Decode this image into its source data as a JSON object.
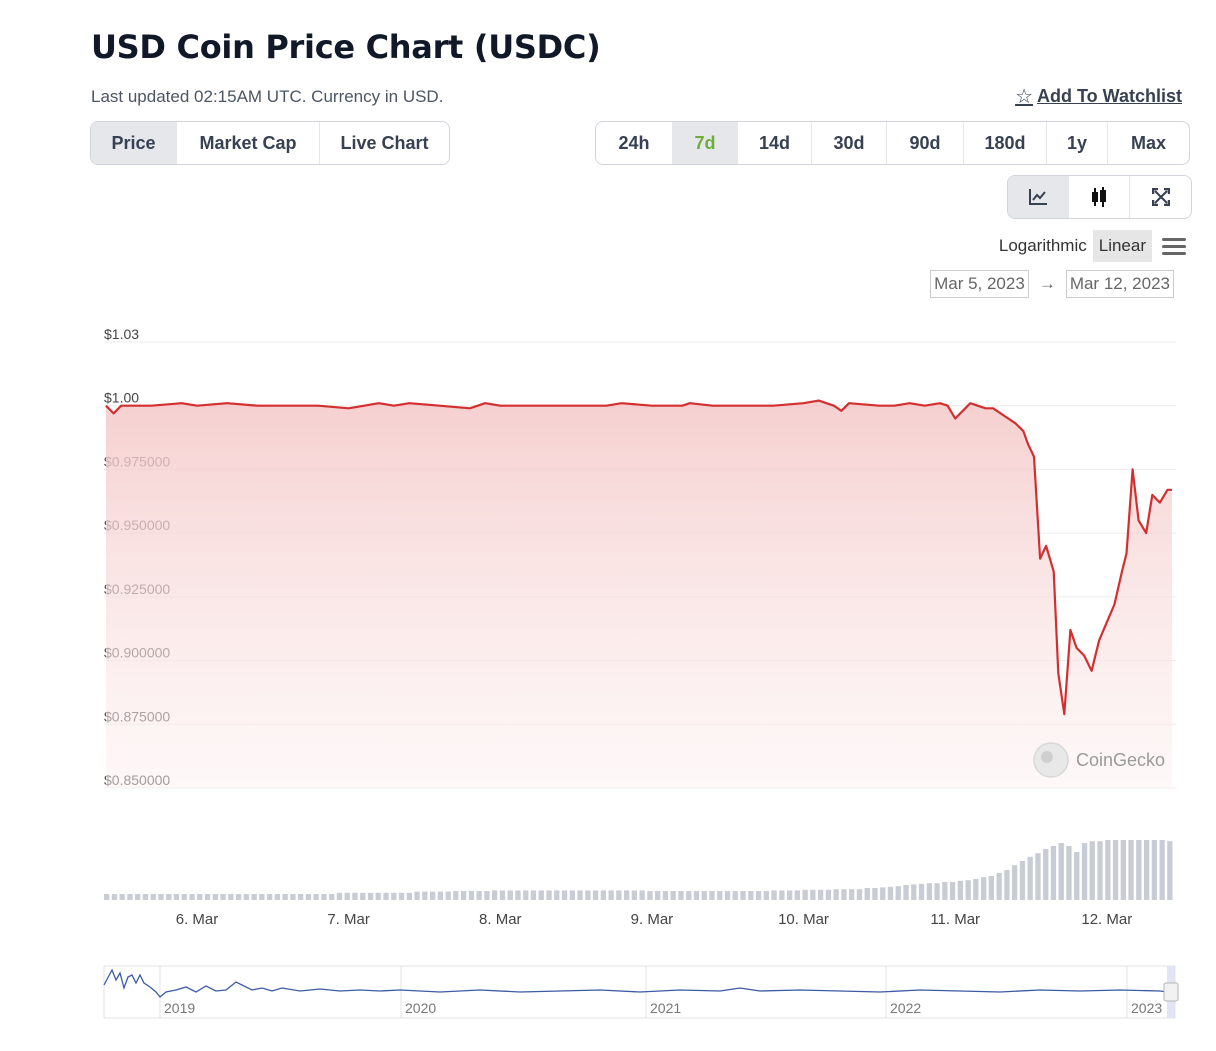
{
  "header": {
    "title": "USD Coin Price Chart (USDC)",
    "subtitle": "Last updated 02:15AM UTC. Currency in USD.",
    "watchlist_label": "Add To Watchlist"
  },
  "tabs": [
    {
      "label": "Price",
      "active": true
    },
    {
      "label": "Market Cap",
      "active": false
    },
    {
      "label": "Live Chart",
      "active": false
    }
  ],
  "ranges": [
    {
      "label": "24h",
      "active": false
    },
    {
      "label": "7d",
      "active": true
    },
    {
      "label": "14d",
      "active": false
    },
    {
      "label": "30d",
      "active": false
    },
    {
      "label": "90d",
      "active": false
    },
    {
      "label": "180d",
      "active": false
    },
    {
      "label": "1y",
      "active": false
    },
    {
      "label": "Max",
      "active": false
    }
  ],
  "tools": [
    {
      "icon": "line-chart-icon",
      "active": true
    },
    {
      "icon": "candlestick-icon",
      "active": false
    },
    {
      "icon": "fullscreen-icon",
      "active": false
    }
  ],
  "scale": {
    "log_label": "Logarithmic",
    "linear_label": "Linear",
    "active": "Linear"
  },
  "date_range": {
    "from": "Mar 5, 2023",
    "arrow": "→",
    "to": "Mar 12, 2023"
  },
  "colors": {
    "line": "#d32f2f",
    "fill": "#f8d7d7",
    "volume": "#c8ccd4",
    "navigator": "#3b5ba5",
    "accent_range": "#6fae3c"
  },
  "chart_data": {
    "type": "line",
    "yaxis_labels": [
      "$1.03",
      "$1.00",
      "$0.975000",
      "$0.950000",
      "$0.925000",
      "$0.900000",
      "$0.875000",
      "$0.850000"
    ],
    "xaxis_labels": [
      "6. Mar",
      "7. Mar",
      "8. Mar",
      "9. Mar",
      "10. Mar",
      "11. Mar",
      "12. Mar"
    ],
    "ylim": [
      0.85,
      1.025
    ],
    "x_start_day": 5.4,
    "x_end_day": 12.43,
    "series": [
      {
        "x": [
          5.4,
          5.45,
          5.5,
          5.7,
          5.9,
          6.0,
          6.2,
          6.4,
          6.6,
          6.8,
          7.0,
          7.2,
          7.3,
          7.4,
          7.6,
          7.8,
          7.9,
          8.0,
          8.2,
          8.3,
          8.5,
          8.7,
          8.8,
          9.0,
          9.2,
          9.25,
          9.4,
          9.6,
          9.8,
          10.0,
          10.1,
          10.2,
          10.25,
          10.3,
          10.5,
          10.6,
          10.7,
          10.8,
          10.9,
          10.95,
          11.0,
          11.1,
          11.2,
          11.25,
          11.35,
          11.4,
          11.45,
          11.48,
          11.52,
          11.56,
          11.6,
          11.65,
          11.68,
          11.72,
          11.76,
          11.8,
          11.85,
          11.9,
          11.95,
          12.0,
          12.05,
          12.1,
          12.13,
          12.17,
          12.21,
          12.26,
          12.3,
          12.35,
          12.4,
          12.43
        ],
        "y": [
          1.0,
          0.997,
          1.0,
          1.0,
          1.001,
          1.0,
          1.001,
          1.0,
          1.0,
          1.0,
          0.999,
          1.001,
          1.0,
          1.001,
          1.0,
          0.999,
          1.001,
          1.0,
          1.0,
          1.0,
          1.0,
          1.0,
          1.001,
          1.0,
          1.0,
          1.001,
          1.0,
          1.0,
          1.0,
          1.001,
          1.002,
          1.0,
          0.998,
          1.001,
          1.0,
          1.0,
          1.001,
          1.0,
          1.001,
          1.0,
          0.995,
          1.001,
          0.999,
          0.999,
          0.995,
          0.993,
          0.99,
          0.985,
          0.98,
          0.94,
          0.945,
          0.935,
          0.895,
          0.879,
          0.912,
          0.905,
          0.902,
          0.896,
          0.908,
          0.915,
          0.922,
          0.935,
          0.942,
          0.975,
          0.955,
          0.95,
          0.965,
          0.962,
          0.967,
          0.967
        ]
      }
    ],
    "volume_note": "relative trading volume bars",
    "volume": [
      0.1,
      0.1,
      0.1,
      0.1,
      0.1,
      0.1,
      0.1,
      0.1,
      0.1,
      0.1,
      0.1,
      0.1,
      0.1,
      0.1,
      0.1,
      0.1,
      0.1,
      0.1,
      0.1,
      0.1,
      0.1,
      0.1,
      0.1,
      0.1,
      0.1,
      0.1,
      0.1,
      0.1,
      0.1,
      0.1,
      0.12,
      0.12,
      0.12,
      0.12,
      0.12,
      0.12,
      0.12,
      0.12,
      0.12,
      0.12,
      0.14,
      0.14,
      0.14,
      0.14,
      0.14,
      0.15,
      0.15,
      0.15,
      0.15,
      0.15,
      0.16,
      0.16,
      0.16,
      0.16,
      0.16,
      0.16,
      0.16,
      0.16,
      0.16,
      0.16,
      0.16,
      0.16,
      0.16,
      0.16,
      0.16,
      0.16,
      0.16,
      0.16,
      0.16,
      0.16,
      0.15,
      0.15,
      0.15,
      0.15,
      0.15,
      0.15,
      0.15,
      0.15,
      0.15,
      0.15,
      0.15,
      0.15,
      0.15,
      0.15,
      0.15,
      0.15,
      0.16,
      0.16,
      0.16,
      0.16,
      0.17,
      0.17,
      0.17,
      0.17,
      0.18,
      0.18,
      0.18,
      0.18,
      0.2,
      0.2,
      0.21,
      0.22,
      0.23,
      0.25,
      0.26,
      0.27,
      0.28,
      0.28,
      0.3,
      0.3,
      0.32,
      0.33,
      0.35,
      0.38,
      0.4,
      0.45,
      0.5,
      0.58,
      0.65,
      0.72,
      0.78,
      0.85,
      0.9,
      0.95,
      0.9,
      0.8,
      0.95,
      0.98,
      0.98,
      1.0,
      1.0,
      1.0,
      1.0,
      1.0,
      1.0,
      1.0,
      1.0,
      0.98
    ],
    "navigator_labels": [
      "2019",
      "2020",
      "2021",
      "2022",
      "2023"
    ]
  },
  "watermark": "CoinGecko"
}
